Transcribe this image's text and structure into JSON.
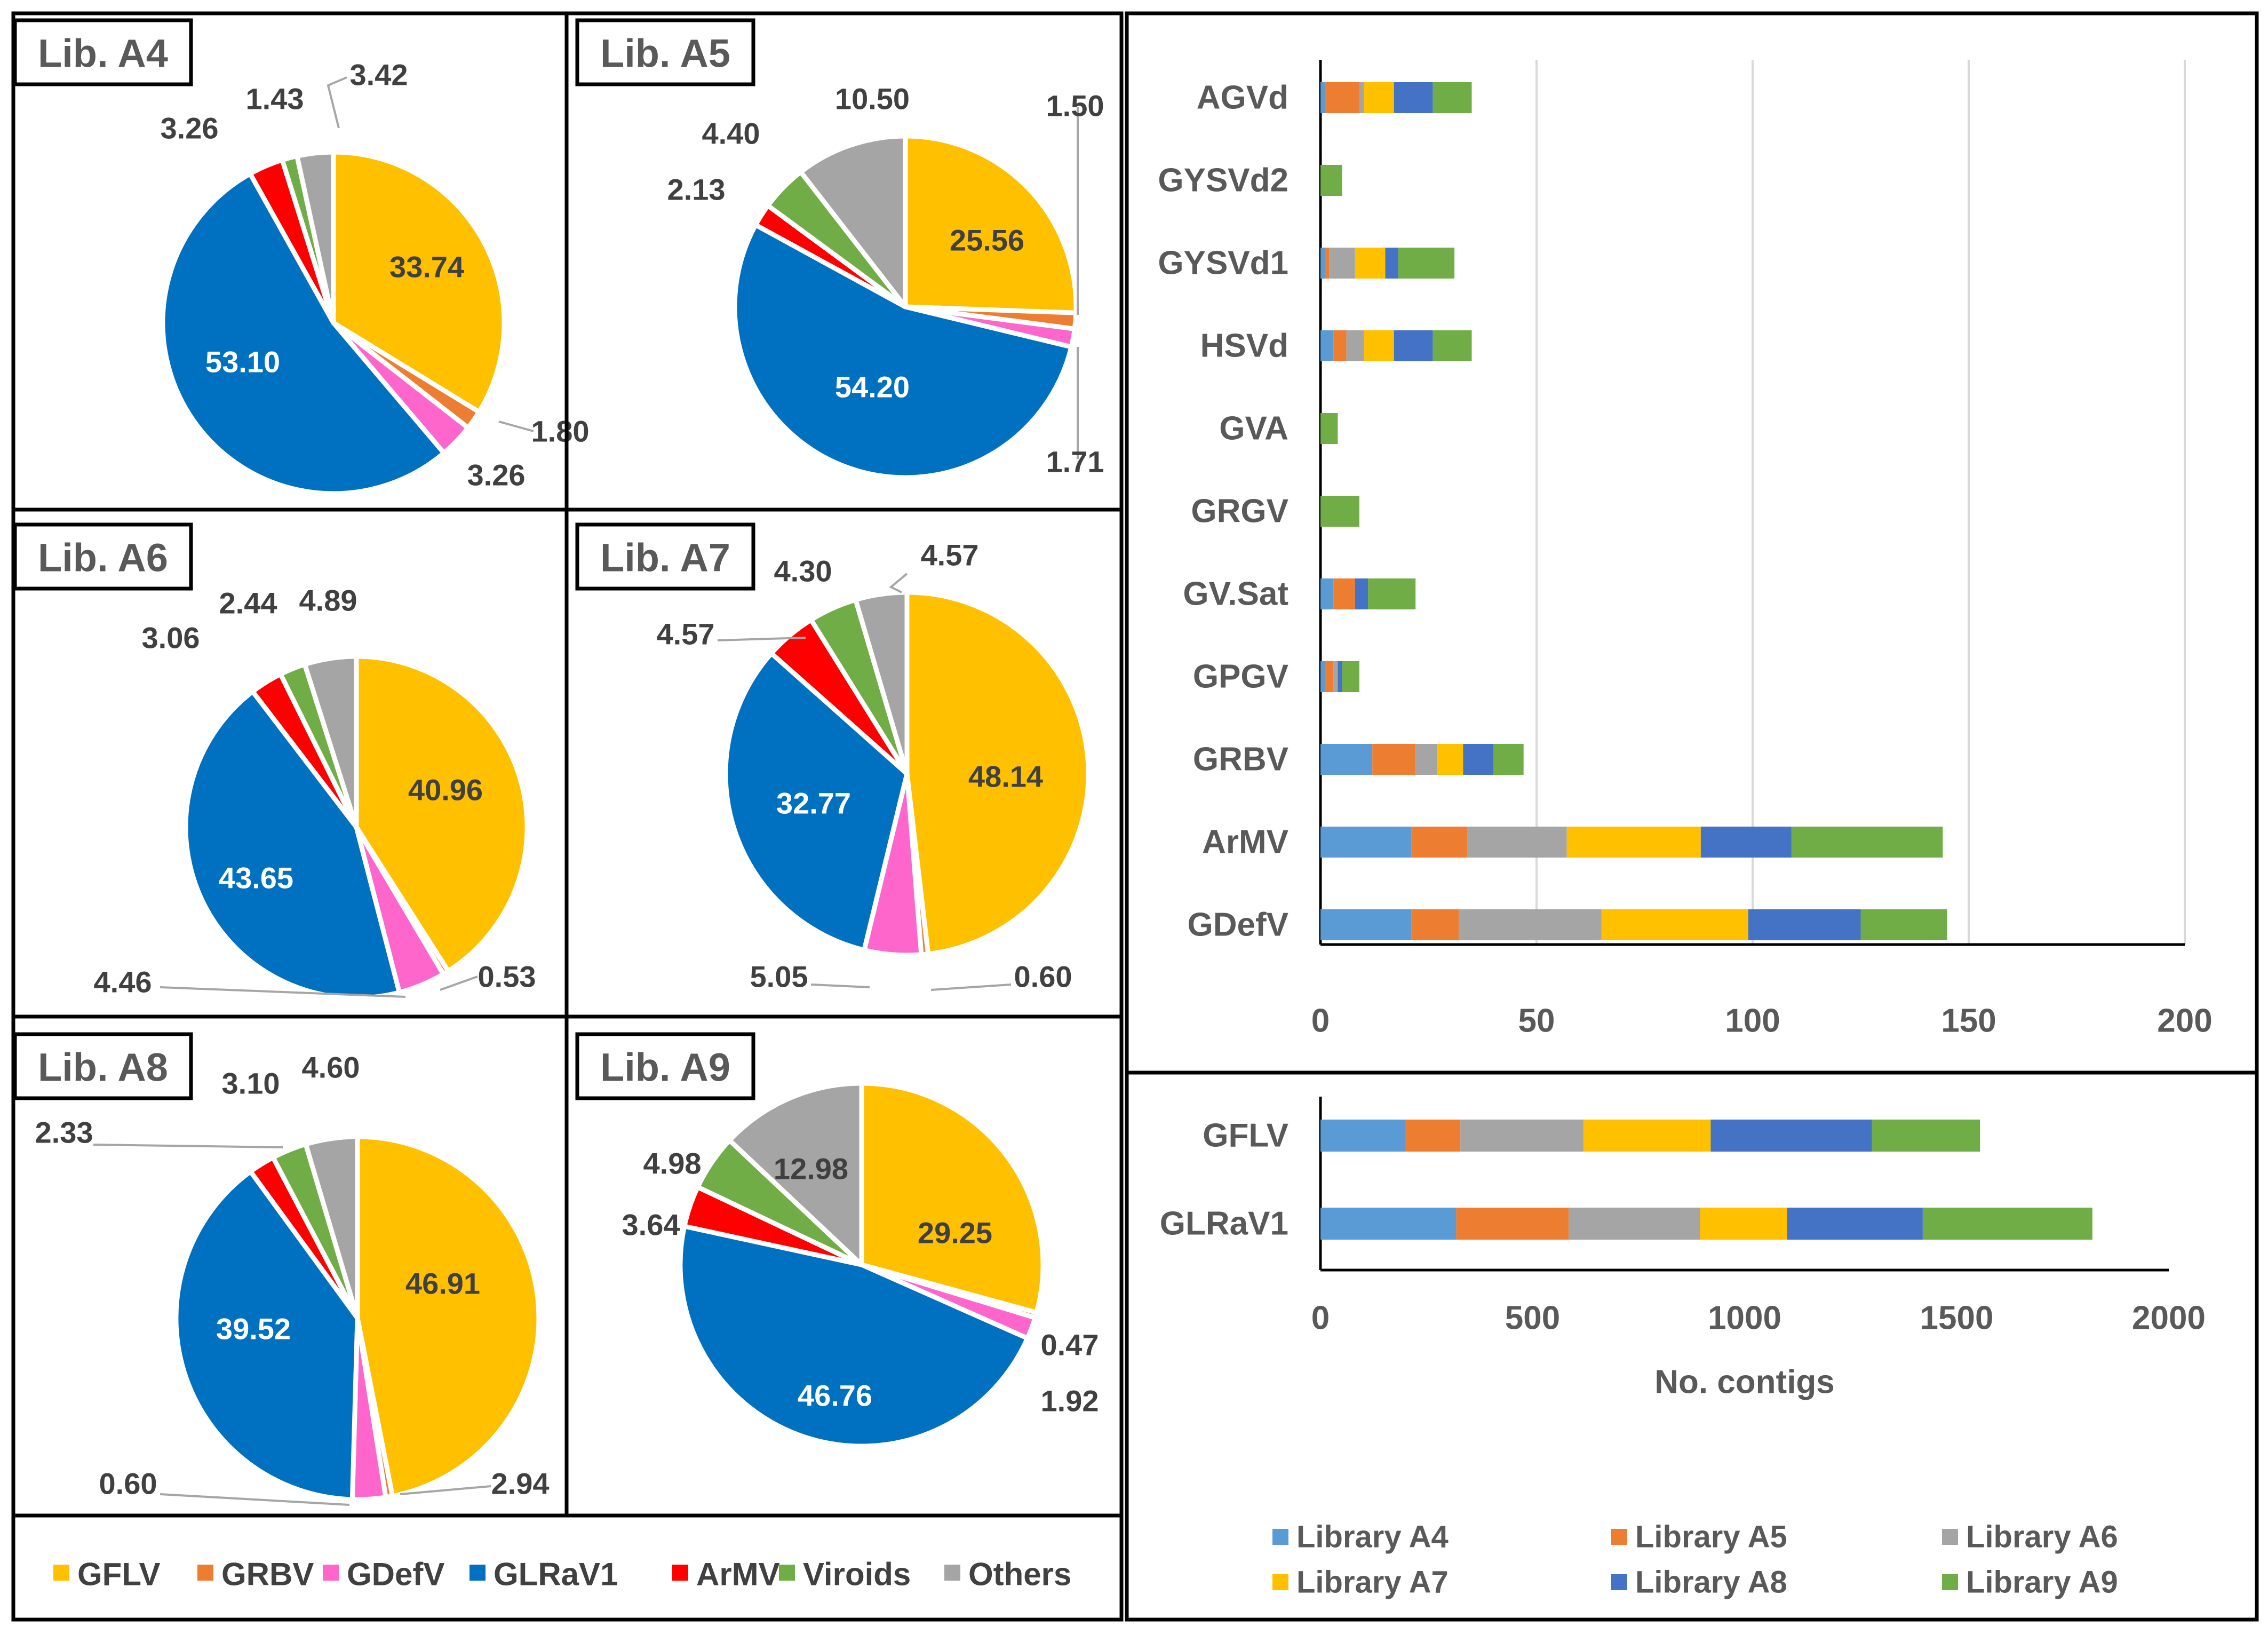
{
  "colors": {
    "GFLV": "#FFC000",
    "GRBV": "#ED7D31",
    "GDefV": "#FF66CC",
    "GLRaV1": "#0070C0",
    "ArMV": "#FF0000",
    "Viroids": "#70AD47",
    "Others": "#A5A5A5",
    "Library A4": "#5B9BD5",
    "Library A5": "#ED7D31",
    "Library A6": "#A5A5A5",
    "Library A7": "#FFC000",
    "Library A8": "#4472C4",
    "Library A9": "#70AD47"
  },
  "pie_legend": [
    "GFLV",
    "GRBV",
    "GDefV",
    "GLRaV1",
    "ArMV",
    "Viroids",
    "Others"
  ],
  "chart_data": [
    {
      "type": "pie",
      "title": "Lib. A4",
      "labels": [
        "GFLV",
        "GRBV",
        "GDefV",
        "GLRaV1",
        "ArMV",
        "Viroids",
        "Others"
      ],
      "values": [
        33.74,
        1.8,
        3.26,
        53.1,
        3.26,
        1.43,
        3.42
      ],
      "value_labels": [
        "33.74",
        "1.80",
        "3.26",
        "53.10",
        "3.26",
        "1.43",
        "3.42"
      ]
    },
    {
      "type": "pie",
      "title": "Lib. A5",
      "labels": [
        "GFLV",
        "GRBV",
        "GDefV",
        "GLRaV1",
        "ArMV",
        "Viroids",
        "Others"
      ],
      "values": [
        25.56,
        1.5,
        1.71,
        54.2,
        2.13,
        4.4,
        10.5
      ],
      "value_labels": [
        "25.56",
        "1.50",
        "1.71",
        "54.20",
        "2.13",
        "4.40",
        "10.50"
      ]
    },
    {
      "type": "pie",
      "title": "Lib. A6",
      "labels": [
        "GFLV",
        "GRBV",
        "GDefV",
        "GLRaV1",
        "ArMV",
        "Viroids",
        "Others"
      ],
      "values": [
        40.96,
        0.53,
        4.46,
        43.65,
        3.06,
        2.44,
        4.89
      ],
      "value_labels": [
        "40.96",
        "0.53",
        "4.46",
        "43.65",
        "3.06",
        "2.44",
        "4.89"
      ]
    },
    {
      "type": "pie",
      "title": "Lib. A7",
      "labels": [
        "GFLV",
        "GRBV",
        "GDefV",
        "GLRaV1",
        "ArMV",
        "Viroids",
        "Others"
      ],
      "values": [
        48.14,
        0.6,
        5.05,
        32.77,
        4.57,
        4.3,
        4.57
      ],
      "value_labels": [
        "48.14",
        "0.60",
        "5.05",
        "32.77",
        "4.57",
        "4.30",
        "4.57"
      ]
    },
    {
      "type": "pie",
      "title": "Lib. A8",
      "labels": [
        "GFLV",
        "GRBV",
        "GDefV",
        "GLRaV1",
        "ArMV",
        "Viroids",
        "Others"
      ],
      "values": [
        46.91,
        0.6,
        2.94,
        39.52,
        2.33,
        3.1,
        4.6
      ],
      "value_labels": [
        "46.91",
        "0.60",
        "2.94",
        "39.52",
        "2.33",
        "3.10",
        "4.60"
      ]
    },
    {
      "type": "pie",
      "title": "Lib. A9",
      "labels": [
        "GFLV",
        "GRBV",
        "GDefV",
        "GLRaV1",
        "ArMV",
        "Viroids",
        "Others"
      ],
      "values": [
        29.25,
        0.47,
        1.92,
        46.76,
        3.64,
        4.98,
        12.98
      ],
      "value_labels": [
        "29.25",
        "0.47",
        "1.92",
        "46.76",
        "3.64",
        "4.98",
        "12.98"
      ]
    },
    {
      "type": "bar",
      "stacked": true,
      "orientation": "horizontal",
      "categories": [
        "AGVd",
        "GYSVd2",
        "GYSVd1",
        "HSVd",
        "GVA",
        "GRGV",
        "GV.Sat",
        "GPGV",
        "GRBV",
        "ArMV",
        "GDefV"
      ],
      "series": [
        {
          "name": "Library A4",
          "values": [
            1,
            0,
            1,
            3,
            0,
            0,
            3,
            1,
            12,
            21,
            21
          ]
        },
        {
          "name": "Library A5",
          "values": [
            8,
            0,
            1,
            3,
            0,
            0,
            5,
            2,
            10,
            13,
            11
          ]
        },
        {
          "name": "Library A6",
          "values": [
            1,
            0,
            6,
            4,
            0,
            0,
            0,
            1,
            5,
            23,
            33
          ]
        },
        {
          "name": "Library A7",
          "values": [
            7,
            0,
            7,
            7,
            0,
            0,
            0,
            0,
            6,
            31,
            34
          ]
        },
        {
          "name": "Library A8",
          "values": [
            9,
            0,
            3,
            9,
            0,
            0,
            3,
            1,
            7,
            21,
            26
          ]
        },
        {
          "name": "Library A9",
          "values": [
            9,
            5,
            13,
            9,
            4,
            9,
            11,
            4,
            7,
            35,
            20
          ]
        }
      ],
      "xlim": [
        0,
        200
      ],
      "xticks": [
        0,
        50,
        100,
        150,
        200
      ],
      "gridlines": true
    },
    {
      "type": "bar",
      "stacked": true,
      "orientation": "horizontal",
      "categories": [
        "GFLV",
        "GLRaV1"
      ],
      "series": [
        {
          "name": "Library A4",
          "values": [
            200,
            320
          ]
        },
        {
          "name": "Library A5",
          "values": [
            130,
            265
          ]
        },
        {
          "name": "Library A6",
          "values": [
            290,
            310
          ]
        },
        {
          "name": "Library A7",
          "values": [
            300,
            205
          ]
        },
        {
          "name": "Library A8",
          "values": [
            380,
            320
          ]
        },
        {
          "name": "Library A9",
          "values": [
            255,
            400
          ]
        }
      ],
      "xlim": [
        0,
        2000
      ],
      "xticks": [
        0,
        500,
        1000,
        1500,
        2000
      ],
      "xlabel": "No. contigs",
      "legend": [
        "Library A4",
        "Library A5",
        "Library A6",
        "Library A7",
        "Library A8",
        "Library A9"
      ],
      "legend_position": "bottom"
    }
  ]
}
